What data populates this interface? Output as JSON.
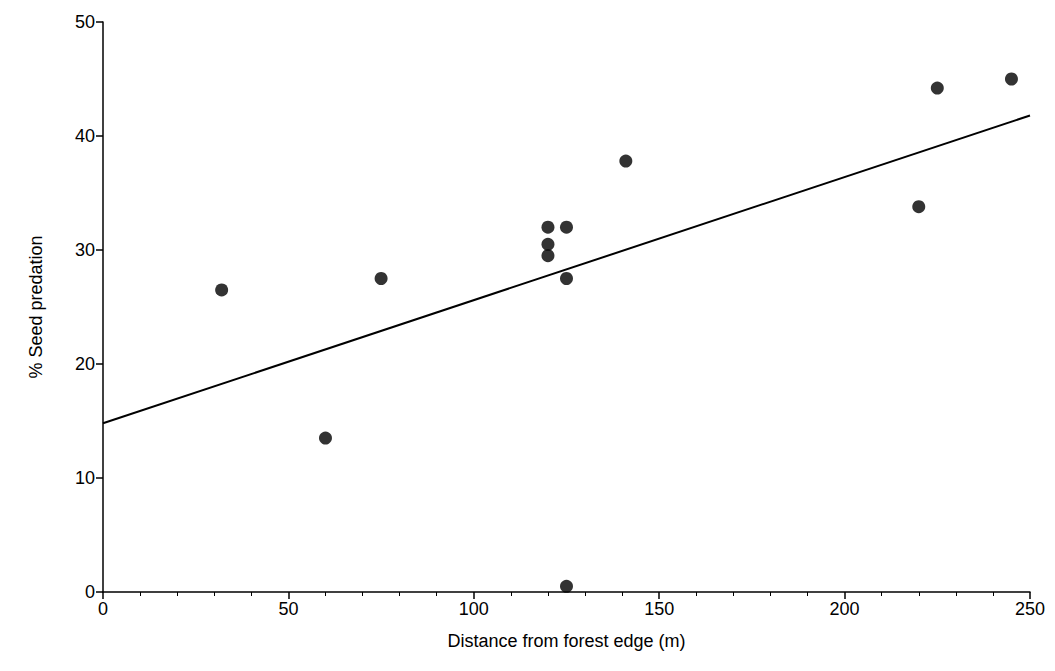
{
  "chart_data": {
    "type": "scatter",
    "x_label": "Distance from forest edge (m)",
    "y_label": "% Seed predation",
    "x": [
      32,
      60,
      75,
      120,
      120,
      120,
      125,
      125,
      125,
      141,
      220,
      225,
      245
    ],
    "values": [
      26.5,
      13.5,
      27.5,
      32,
      30.5,
      29.5,
      32,
      27.5,
      0.5,
      37.8,
      33.8,
      44.2,
      45
    ],
    "color": "#000000",
    "marker": "circle",
    "fit": {
      "x": [
        0,
        250
      ],
      "values": [
        14.8,
        41.8
      ],
      "line_style": "solid",
      "color": "#000000"
    },
    "xlim": [
      0,
      250
    ],
    "xticks": [
      0,
      50,
      100,
      150,
      200,
      250
    ],
    "ylim": [
      0,
      50
    ],
    "yticks": [
      0,
      10,
      20,
      30,
      40,
      50
    ],
    "grid": false
  }
}
